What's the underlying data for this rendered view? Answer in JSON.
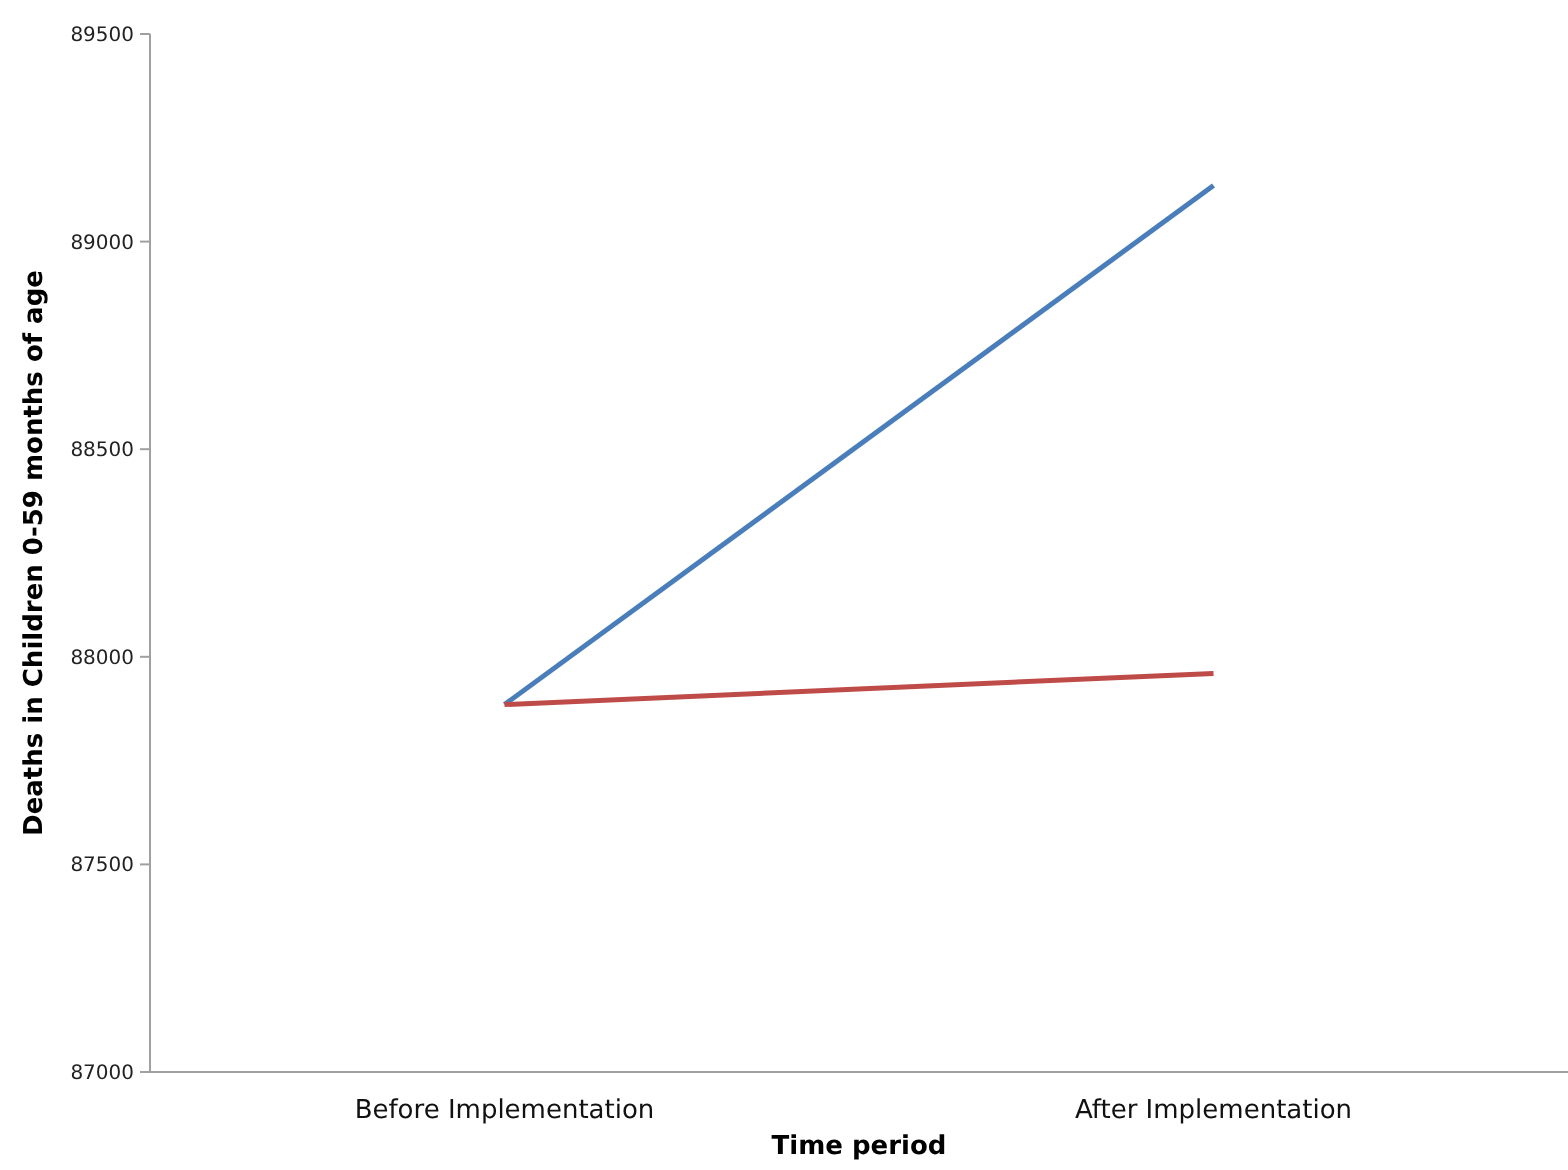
{
  "chart_data": {
    "type": "line",
    "xlabel": "Time period",
    "ylabel": "Deaths in Children 0-59 months of age",
    "categories": [
      "Before Implementation",
      "After Implementation"
    ],
    "series": [
      {
        "color": "#4a7ebb",
        "values": [
          87885,
          89135
        ]
      },
      {
        "color": "#be4b48",
        "values": [
          87885,
          87960
        ]
      }
    ],
    "ylim": [
      87000,
      89500
    ],
    "yticks": [
      87000,
      87500,
      88000,
      88500,
      89000,
      89500
    ],
    "grid": false,
    "marker": "none",
    "line_style": "solid"
  }
}
